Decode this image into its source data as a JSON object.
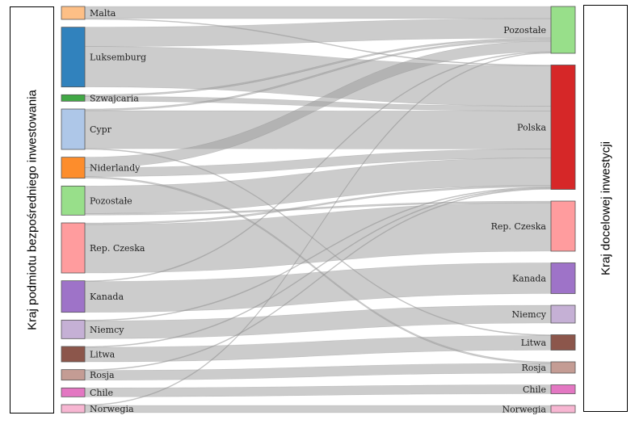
{
  "left_axis_title": "Kraj podmiotu bezpośredniego inwestowania",
  "right_axis_title": "Kraj docelowej inwestycji",
  "chart_data": {
    "type": "sankey",
    "title": "",
    "sources": [
      {
        "name": "Malta",
        "color": "#fdbf86"
      },
      {
        "name": "Luksemburg",
        "color": "#3182bd"
      },
      {
        "name": "Szwajcaria",
        "color": "#41a845"
      },
      {
        "name": "Cypr",
        "color": "#aec7e8"
      },
      {
        "name": "Niderlandy",
        "color": "#fd8d2c"
      },
      {
        "name": "Pozostałe",
        "color": "#98df8a"
      },
      {
        "name": "Rep. Czeska",
        "color": "#ff9c9e"
      },
      {
        "name": "Kanada",
        "color": "#9e73c8"
      },
      {
        "name": "Niemcy",
        "color": "#c5b0d5"
      },
      {
        "name": "Litwa",
        "color": "#8c564b"
      },
      {
        "name": "Rosja",
        "color": "#c49c94"
      },
      {
        "name": "Chile",
        "color": "#e377c2"
      },
      {
        "name": "Norwegia",
        "color": "#f7b6d2"
      }
    ],
    "targets": [
      {
        "name": "Pozostałe",
        "color": "#98df8a"
      },
      {
        "name": "Polska",
        "color": "#d62728"
      },
      {
        "name": "Rep. Czeska",
        "color": "#ff9c9e"
      },
      {
        "name": "Kanada",
        "color": "#9e73c8"
      },
      {
        "name": "Niemcy",
        "color": "#c5b0d5"
      },
      {
        "name": "Litwa",
        "color": "#8c564b"
      },
      {
        "name": "Rosja",
        "color": "#c49c94"
      },
      {
        "name": "Chile",
        "color": "#e377c2"
      },
      {
        "name": "Norwegia",
        "color": "#f7b6d2"
      }
    ],
    "links": [
      {
        "source": "Malta",
        "target": "Pozostałe",
        "value": 15
      },
      {
        "source": "Malta",
        "target": "Polska",
        "value": 1
      },
      {
        "source": "Luksemburg",
        "target": "Pozostałe",
        "value": 24
      },
      {
        "source": "Luksemburg",
        "target": "Polska",
        "value": 50
      },
      {
        "source": "Szwajcaria",
        "target": "Pozostałe",
        "value": 2
      },
      {
        "source": "Szwajcaria",
        "target": "Polska",
        "value": 6
      },
      {
        "source": "Cypr",
        "target": "Pozostałe",
        "value": 2
      },
      {
        "source": "Cypr",
        "target": "Polska",
        "value": 47
      },
      {
        "source": "Cypr",
        "target": "Litwa",
        "value": 1
      },
      {
        "source": "Niderlandy",
        "target": "Pozostałe",
        "value": 13
      },
      {
        "source": "Niderlandy",
        "target": "Polska",
        "value": 11
      },
      {
        "source": "Niderlandy",
        "target": "Rosja",
        "value": 2
      },
      {
        "source": "Pozostałe",
        "target": "Polska",
        "value": 34
      },
      {
        "source": "Pozostałe",
        "target": "Rep. Czeska",
        "value": 2
      },
      {
        "source": "Rep. Czeska",
        "target": "Polska",
        "value": 2
      },
      {
        "source": "Rep. Czeska",
        "target": "Rep. Czeska",
        "value": 60
      },
      {
        "source": "Kanada",
        "target": "Pozostałe",
        "value": 1
      },
      {
        "source": "Kanada",
        "target": "Kanada",
        "value": 38
      },
      {
        "source": "Niemcy",
        "target": "Polska",
        "value": 1
      },
      {
        "source": "Niemcy",
        "target": "Niemcy",
        "value": 22
      },
      {
        "source": "Litwa",
        "target": "Polska",
        "value": 1
      },
      {
        "source": "Litwa",
        "target": "Litwa",
        "value": 18
      },
      {
        "source": "Rosja",
        "target": "Polska",
        "value": 1
      },
      {
        "source": "Rosja",
        "target": "Rosja",
        "value": 12
      },
      {
        "source": "Chile",
        "target": "Chile",
        "value": 11
      },
      {
        "source": "Norwegia",
        "target": "Pozostałe",
        "value": 1
      },
      {
        "source": "Norwegia",
        "target": "Norwegia",
        "value": 9
      }
    ]
  }
}
